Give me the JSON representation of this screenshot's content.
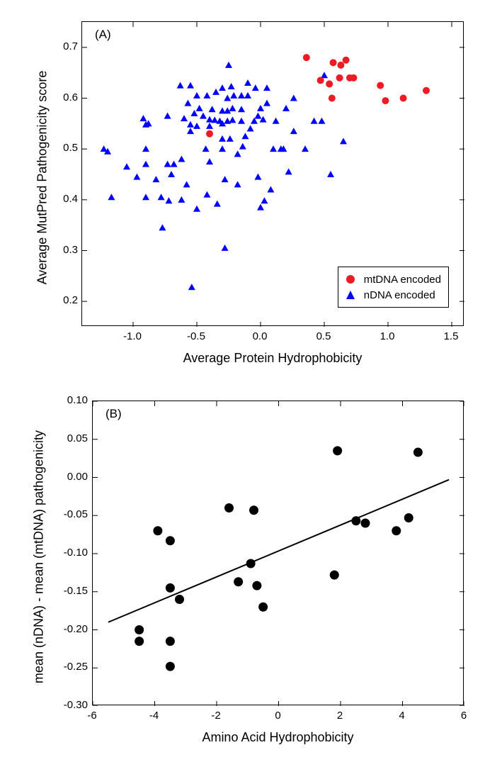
{
  "panelA": {
    "tag": "(A)",
    "type": "scatter",
    "xlabel": "Average Protein Hydrophobicity",
    "ylabel": "Average MutPred Pathogenicity score",
    "xlim": [
      -1.4,
      1.6
    ],
    "ylim": [
      0.15,
      0.75
    ],
    "xticks": [
      -1.0,
      -0.5,
      0.0,
      0.5,
      1.0,
      1.5
    ],
    "yticks": [
      0.2,
      0.3,
      0.4,
      0.5,
      0.6,
      0.7
    ],
    "background_color": "#ffffff",
    "axis_color": "#000000",
    "series": {
      "mt": {
        "label": "mtDNA encoded",
        "marker": "circle",
        "color": "#ed1c24",
        "size": 10,
        "points": [
          [
            0.36,
            0.68
          ],
          [
            0.47,
            0.635
          ],
          [
            0.54,
            0.628
          ],
          [
            0.57,
            0.67
          ],
          [
            0.63,
            0.665
          ],
          [
            0.67,
            0.675
          ],
          [
            0.62,
            0.64
          ],
          [
            0.7,
            0.64
          ],
          [
            0.73,
            0.64
          ],
          [
            0.56,
            0.6
          ],
          [
            0.94,
            0.625
          ],
          [
            0.98,
            0.595
          ],
          [
            1.12,
            0.6
          ],
          [
            1.3,
            0.615
          ],
          [
            -0.4,
            0.53
          ]
        ]
      },
      "nd": {
        "label": "nDNA encoded",
        "marker": "triangle",
        "color": "#0000ff",
        "size": 10,
        "points": [
          [
            -1.23,
            0.5
          ],
          [
            -1.2,
            0.495
          ],
          [
            -1.17,
            0.405
          ],
          [
            -1.05,
            0.465
          ],
          [
            -0.97,
            0.445
          ],
          [
            -0.92,
            0.56
          ],
          [
            -0.9,
            0.548
          ],
          [
            -0.88,
            0.55
          ],
          [
            -0.9,
            0.5
          ],
          [
            -0.9,
            0.47
          ],
          [
            -0.9,
            0.405
          ],
          [
            -0.82,
            0.44
          ],
          [
            -0.78,
            0.405
          ],
          [
            -0.77,
            0.345
          ],
          [
            -0.73,
            0.565
          ],
          [
            -0.73,
            0.47
          ],
          [
            -0.72,
            0.398
          ],
          [
            -0.7,
            0.45
          ],
          [
            -0.68,
            0.47
          ],
          [
            -0.63,
            0.625
          ],
          [
            -0.62,
            0.48
          ],
          [
            -0.62,
            0.4
          ],
          [
            -0.6,
            0.56
          ],
          [
            -0.58,
            0.43
          ],
          [
            -0.57,
            0.59
          ],
          [
            -0.55,
            0.625
          ],
          [
            -0.55,
            0.548
          ],
          [
            -0.55,
            0.535
          ],
          [
            -0.54,
            0.228
          ],
          [
            -0.52,
            0.57
          ],
          [
            -0.5,
            0.605
          ],
          [
            -0.5,
            0.545
          ],
          [
            -0.5,
            0.382
          ],
          [
            -0.48,
            0.58
          ],
          [
            -0.45,
            0.565
          ],
          [
            -0.43,
            0.5
          ],
          [
            -0.42,
            0.605
          ],
          [
            -0.42,
            0.41
          ],
          [
            -0.4,
            0.558
          ],
          [
            -0.4,
            0.545
          ],
          [
            -0.4,
            0.475
          ],
          [
            -0.38,
            0.578
          ],
          [
            -0.36,
            0.557
          ],
          [
            -0.35,
            0.612
          ],
          [
            -0.34,
            0.392
          ],
          [
            -0.32,
            0.555
          ],
          [
            -0.3,
            0.62
          ],
          [
            -0.3,
            0.575
          ],
          [
            -0.3,
            0.55
          ],
          [
            -0.3,
            0.52
          ],
          [
            -0.3,
            0.5
          ],
          [
            -0.28,
            0.44
          ],
          [
            -0.28,
            0.305
          ],
          [
            -0.26,
            0.6
          ],
          [
            -0.26,
            0.575
          ],
          [
            -0.26,
            0.555
          ],
          [
            -0.25,
            0.665
          ],
          [
            -0.24,
            0.52
          ],
          [
            -0.23,
            0.623
          ],
          [
            -0.22,
            0.58
          ],
          [
            -0.22,
            0.557
          ],
          [
            -0.21,
            0.605
          ],
          [
            -0.18,
            0.49
          ],
          [
            -0.18,
            0.43
          ],
          [
            -0.15,
            0.605
          ],
          [
            -0.15,
            0.578
          ],
          [
            -0.15,
            0.555
          ],
          [
            -0.14,
            0.505
          ],
          [
            -0.12,
            0.525
          ],
          [
            -0.1,
            0.63
          ],
          [
            -0.1,
            0.605
          ],
          [
            -0.08,
            0.54
          ],
          [
            -0.05,
            0.555
          ],
          [
            -0.04,
            0.62
          ],
          [
            -0.02,
            0.565
          ],
          [
            -0.02,
            0.445
          ],
          [
            0.0,
            0.58
          ],
          [
            0.0,
            0.385
          ],
          [
            0.02,
            0.558
          ],
          [
            0.03,
            0.398
          ],
          [
            0.05,
            0.62
          ],
          [
            0.05,
            0.59
          ],
          [
            0.08,
            0.42
          ],
          [
            0.1,
            0.5
          ],
          [
            0.12,
            0.555
          ],
          [
            0.16,
            0.5
          ],
          [
            0.18,
            0.5
          ],
          [
            0.2,
            0.58
          ],
          [
            0.22,
            0.455
          ],
          [
            0.26,
            0.6
          ],
          [
            0.26,
            0.535
          ],
          [
            0.35,
            0.5
          ],
          [
            0.42,
            0.555
          ],
          [
            0.48,
            0.555
          ],
          [
            0.5,
            0.645
          ],
          [
            0.55,
            0.45
          ],
          [
            0.65,
            0.515
          ]
        ]
      }
    },
    "legend": {
      "position": "bottom-right",
      "border_color": "#000000",
      "background": "#ffffff"
    }
  },
  "panelB": {
    "tag": "(B)",
    "type": "scatter-with-fit",
    "xlabel": "Amino Acid Hydrophobicity",
    "ylabel": "mean (nDNA) - mean (mtDNA) pathogenicity",
    "xlim": [
      -6,
      6
    ],
    "ylim": [
      -0.3,
      0.1
    ],
    "xticks": [
      -6,
      -4,
      -2,
      0,
      2,
      4,
      6
    ],
    "yticks": [
      -0.3,
      -0.25,
      -0.2,
      -0.15,
      -0.1,
      -0.05,
      0.0,
      0.05,
      0.1
    ],
    "background_color": "#ffffff",
    "axis_color": "#000000",
    "marker": {
      "shape": "circle",
      "fill": "#000000",
      "size": 13
    },
    "line": {
      "color": "#000000",
      "width": 2,
      "x1": -5.5,
      "y1": -0.19,
      "x2": 5.5,
      "y2": -0.003
    },
    "points": [
      [
        -4.5,
        -0.215
      ],
      [
        -4.5,
        -0.2
      ],
      [
        -3.9,
        -0.07
      ],
      [
        -3.5,
        -0.083
      ],
      [
        -3.5,
        -0.145
      ],
      [
        -3.5,
        -0.215
      ],
      [
        -3.5,
        -0.248
      ],
      [
        -3.2,
        -0.16
      ],
      [
        -1.6,
        -0.04
      ],
      [
        -1.3,
        -0.137
      ],
      [
        -0.8,
        -0.043
      ],
      [
        -0.9,
        -0.113
      ],
      [
        -0.7,
        -0.142
      ],
      [
        -0.5,
        -0.17
      ],
      [
        1.8,
        -0.128
      ],
      [
        1.9,
        0.035
      ],
      [
        2.5,
        -0.057
      ],
      [
        2.8,
        -0.06
      ],
      [
        3.8,
        -0.07
      ],
      [
        4.2,
        -0.053
      ],
      [
        4.5,
        0.033
      ]
    ]
  }
}
